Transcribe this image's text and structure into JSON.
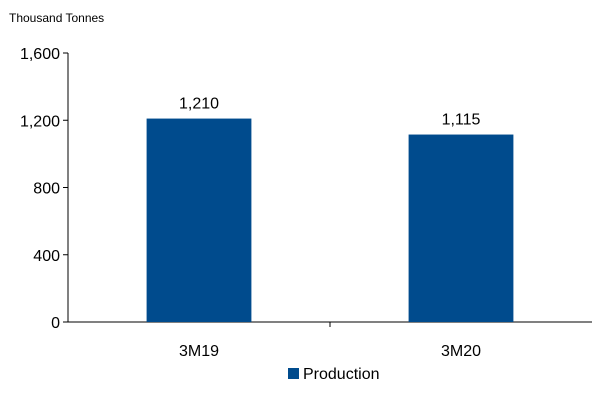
{
  "chart_data": {
    "type": "bar",
    "unit_label": "Thousand Tonnes",
    "categories": [
      "3M19",
      "3M20"
    ],
    "series": [
      {
        "name": "Production",
        "values": [
          1210,
          1115
        ],
        "value_labels": [
          "1,210",
          "1,115"
        ],
        "color": "#004B8D"
      }
    ],
    "y_ticks": [
      0,
      400,
      800,
      1200,
      1600
    ],
    "y_tick_labels": [
      "0",
      "400",
      "800",
      "1,200",
      "1,600"
    ],
    "ylim": [
      0,
      1600
    ],
    "grid": false,
    "legend_position": "bottom"
  }
}
